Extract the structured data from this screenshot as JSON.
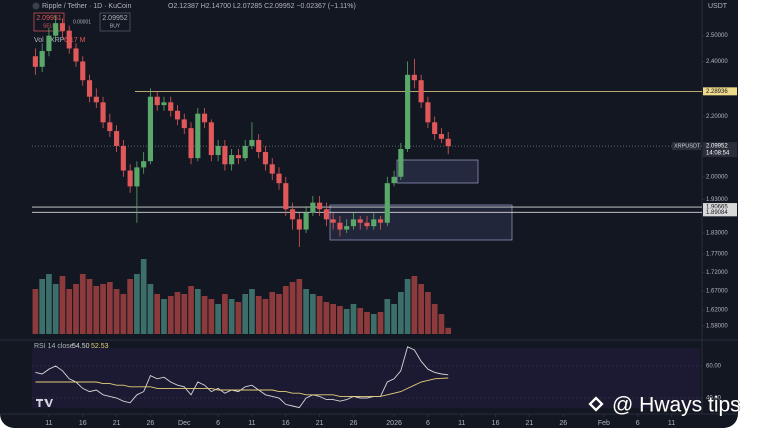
{
  "header": {
    "symbol": "Ripple / Tether · 1D · KuCoin",
    "ohlc": "O2.12387 H2.14700 L2.07285 C2.09952 −0.02367 (−1.11%)",
    "sell_price": "2.09951",
    "sell": "SELL",
    "spread": "0.00001",
    "buy_price": "2.09952",
    "buy": "BUY"
  },
  "currency": "USDT",
  "watermark": "@ Hways tips",
  "chart_data": {
    "type": "candlestick",
    "up_color": "#5aa86a",
    "down_color": "#e0585a",
    "open": [
      2.42,
      2.38,
      2.44,
      2.5,
      2.55,
      2.52,
      2.45,
      2.4,
      2.33,
      2.27,
      2.25,
      2.18,
      2.15,
      2.1,
      2.02,
      1.97,
      2.03,
      2.05,
      2.27,
      2.24,
      2.25,
      2.22,
      2.19,
      2.16,
      2.06,
      2.21,
      2.18,
      2.07,
      2.1,
      2.04,
      2.07,
      2.06,
      2.1,
      2.12,
      2.08,
      2.04,
      2.01,
      1.98,
      1.9,
      1.87,
      1.84,
      1.89,
      1.92,
      1.9,
      1.87,
      1.86,
      1.84,
      1.85,
      1.87,
      1.86,
      1.85,
      1.87,
      1.86,
      1.98,
      2.0,
      2.09,
      2.35,
      2.33,
      2.25,
      2.18,
      2.14,
      2.12387
    ],
    "high": [
      2.45,
      2.47,
      2.53,
      2.58,
      2.57,
      2.54,
      2.47,
      2.42,
      2.35,
      2.3,
      2.27,
      2.21,
      2.17,
      2.12,
      2.04,
      2.05,
      2.08,
      2.3,
      2.29,
      2.27,
      2.27,
      2.24,
      2.21,
      2.18,
      2.23,
      2.23,
      2.19,
      2.12,
      2.12,
      2.09,
      2.09,
      2.12,
      2.18,
      2.14,
      2.1,
      2.06,
      2.03,
      2.0,
      1.92,
      1.89,
      1.91,
      1.94,
      1.94,
      1.92,
      1.89,
      1.88,
      1.87,
      1.89,
      1.88,
      1.88,
      1.89,
      1.88,
      2.0,
      2.02,
      2.11,
      2.4,
      2.41,
      2.35,
      2.27,
      2.2,
      2.16,
      2.147
    ],
    "low": [
      2.35,
      2.36,
      2.42,
      2.48,
      2.49,
      2.43,
      2.38,
      2.31,
      2.25,
      2.23,
      2.16,
      2.13,
      2.08,
      2.0,
      1.95,
      1.86,
      2.01,
      2.04,
      2.22,
      2.22,
      2.2,
      2.17,
      2.14,
      2.04,
      2.05,
      2.16,
      2.05,
      2.05,
      2.02,
      2.02,
      2.04,
      2.05,
      2.09,
      2.06,
      2.02,
      1.99,
      1.96,
      1.88,
      1.84,
      1.79,
      1.83,
      1.88,
      1.88,
      1.85,
      1.84,
      1.82,
      1.83,
      1.84,
      1.84,
      1.84,
      1.84,
      1.84,
      1.85,
      1.97,
      1.99,
      2.08,
      2.3,
      2.23,
      2.16,
      2.12,
      2.11,
      2.07285
    ],
    "close": [
      2.38,
      2.44,
      2.5,
      2.55,
      2.52,
      2.45,
      2.4,
      2.33,
      2.27,
      2.25,
      2.18,
      2.15,
      2.1,
      2.02,
      1.97,
      2.03,
      2.05,
      2.27,
      2.24,
      2.25,
      2.22,
      2.19,
      2.16,
      2.06,
      2.21,
      2.18,
      2.07,
      2.1,
      2.04,
      2.07,
      2.06,
      2.1,
      2.12,
      2.08,
      2.04,
      2.01,
      1.98,
      1.9,
      1.87,
      1.84,
      1.89,
      1.92,
      1.9,
      1.87,
      1.86,
      1.84,
      1.85,
      1.87,
      1.86,
      1.85,
      1.87,
      1.86,
      1.98,
      2.0,
      2.09,
      2.35,
      2.33,
      2.25,
      2.18,
      2.14,
      2.12387,
      2.09952
    ],
    "ylim": [
      1.56,
      2.62
    ],
    "log_scale": true,
    "yticks": [
      {
        "value": 2.5,
        "label": "2.50000"
      },
      {
        "value": 2.4,
        "label": "2.40000"
      },
      {
        "value": 2.2,
        "label": "2.20000"
      },
      {
        "value": 2.0,
        "label": "2.00000"
      },
      {
        "value": 1.93,
        "label": "1.93000"
      },
      {
        "value": 1.83,
        "label": "1.83000"
      },
      {
        "value": 1.77,
        "label": "1.77000"
      },
      {
        "value": 1.72,
        "label": "1.72000"
      },
      {
        "value": 1.67,
        "label": "1.67000"
      },
      {
        "value": 1.62,
        "label": "1.62000"
      },
      {
        "value": 1.58,
        "label": "1.58000"
      }
    ],
    "xlim": [
      -0.5,
      98.5
    ],
    "xticks": [
      {
        "value": 2,
        "label": "11"
      },
      {
        "value": 7,
        "label": "16"
      },
      {
        "value": 12,
        "label": "21"
      },
      {
        "value": 17,
        "label": "26"
      },
      {
        "value": 22,
        "label": "Dec"
      },
      {
        "value": 27,
        "label": "6"
      },
      {
        "value": 32,
        "label": "11"
      },
      {
        "value": 37,
        "label": "16"
      },
      {
        "value": 42,
        "label": "21"
      },
      {
        "value": 47,
        "label": "26"
      },
      {
        "value": 53,
        "label": "2026"
      },
      {
        "value": 58,
        "label": "6"
      },
      {
        "value": 63,
        "label": "11"
      },
      {
        "value": 68,
        "label": "16"
      },
      {
        "value": 73,
        "label": "21"
      },
      {
        "value": 78,
        "label": "26"
      },
      {
        "value": 84,
        "label": "Feb"
      },
      {
        "value": 89,
        "label": "6"
      },
      {
        "value": 94,
        "label": "11"
      }
    ],
    "levels": [
      {
        "value": 2.28936,
        "color": "#efd98a"
      },
      {
        "value": 1.90665,
        "color": "#d9d9d9"
      },
      {
        "value": 1.89084,
        "color": "#d9d9d9"
      }
    ],
    "last_price": {
      "symbol": "XRPUSDT",
      "value": 2.09952,
      "countdown": "14:08:54"
    },
    "volume": {
      "label": "Vol · XRP",
      "last": "6.17 M",
      "ylim": [
        0,
        90
      ],
      "up_color": "#3d6f6a",
      "down_color": "#8c3a3c",
      "values": [
        45,
        55,
        60,
        50,
        58,
        45,
        50,
        60,
        55,
        48,
        50,
        52,
        45,
        40,
        55,
        60,
        75,
        50,
        40,
        35,
        38,
        42,
        40,
        48,
        45,
        38,
        35,
        30,
        40,
        35,
        32,
        40,
        45,
        38,
        35,
        42,
        40,
        48,
        52,
        55,
        45,
        40,
        38,
        32,
        30,
        28,
        25,
        30,
        26,
        22,
        20,
        22,
        35,
        30,
        42,
        55,
        58,
        50,
        42,
        30,
        20,
        6.17
      ]
    },
    "rsi": {
      "title": "RSI 14 close",
      "ylim": [
        32.5,
        72.5
      ],
      "yticks": [
        {
          "value": 60,
          "label": "60.00"
        },
        {
          "value": 40,
          "label": "40.00"
        }
      ],
      "series": [
        {
          "color": "#d6d6d6",
          "last_label": "54.50",
          "values": [
            56,
            55,
            58,
            60,
            57,
            52,
            50,
            46,
            44,
            45,
            42,
            41,
            40,
            38,
            37,
            42,
            44,
            54,
            52,
            53,
            50,
            48,
            47,
            42,
            50,
            48,
            44,
            46,
            43,
            45,
            44,
            47,
            48,
            45,
            42,
            41,
            40,
            36,
            35,
            34,
            40,
            42,
            41,
            39,
            39,
            38,
            39,
            41,
            40,
            40,
            41,
            41,
            50,
            52,
            57,
            72,
            70,
            63,
            58,
            56,
            55,
            54.5
          ]
        },
        {
          "color": "#e6cf7a",
          "last_label": "52.53",
          "values": [
            50,
            50,
            50,
            50,
            50,
            50,
            50,
            50,
            50,
            50,
            49,
            49,
            48,
            48,
            47,
            47,
            47,
            47,
            46,
            46,
            46,
            46,
            46,
            46,
            46,
            46,
            46,
            45,
            45,
            45,
            45,
            45,
            45,
            45,
            45,
            45,
            44,
            44,
            43,
            43,
            42,
            42,
            42,
            42,
            42,
            41,
            41,
            41,
            41,
            41,
            41,
            41,
            42,
            43,
            44,
            46,
            48,
            50,
            51,
            52,
            52.3,
            52.53
          ]
        }
      ]
    }
  }
}
